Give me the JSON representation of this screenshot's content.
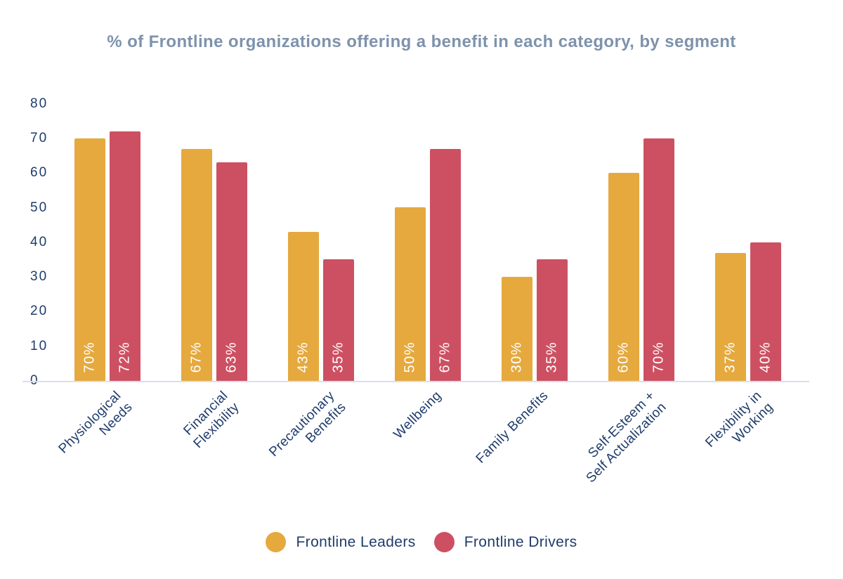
{
  "page": {
    "background": "#FFFFFF"
  },
  "colors": {
    "title": "#7E92AC",
    "axis_text": "#1E3C6B",
    "axis_line": "#DBDFE9",
    "bar_value_text": "#FFFFFF"
  },
  "chart_data": {
    "type": "bar",
    "title": "% of Frontline organizations offering a benefit in each category, by segment",
    "categories": [
      "Physiological Needs",
      "Financial Flexibility",
      "Precautionary Benefits",
      "Wellbeing",
      "Family Benefits",
      "Self-Esteem + Self Actualization",
      "Flexibility in Working"
    ],
    "category_label_lines": [
      [
        "Physiological",
        "Needs"
      ],
      [
        "Financial",
        "Flexibility"
      ],
      [
        "Precautionary",
        "Benefits"
      ],
      [
        "Wellbeing"
      ],
      [
        "Family Benefits"
      ],
      [
        "Self-Esteem +",
        "Self Actualization"
      ],
      [
        "Flexibility in",
        "Working"
      ]
    ],
    "series": [
      {
        "name": "Frontline Leaders",
        "color": "#E5A93E",
        "values": [
          70,
          67,
          43,
          50,
          30,
          60,
          37
        ],
        "value_labels": [
          "70%",
          "67%",
          "43%",
          "50%",
          "30%",
          "60%",
          "37%"
        ]
      },
      {
        "name": "Frontline Drivers",
        "color": "#CD5062",
        "values": [
          72,
          63,
          35,
          67,
          35,
          70,
          40
        ],
        "value_labels": [
          "72%",
          "63%",
          "35%",
          "67%",
          "35%",
          "70%",
          "40%"
        ]
      }
    ],
    "xlabel": "",
    "ylabel": "",
    "ylim": [
      0,
      80
    ],
    "yticks": [
      0,
      10,
      20,
      30,
      40,
      50,
      60,
      70,
      80
    ],
    "grid": false,
    "legend_position": "bottom",
    "bar_value_label_position": "inside-bottom",
    "bar_value_label_rotation": "vertical"
  }
}
